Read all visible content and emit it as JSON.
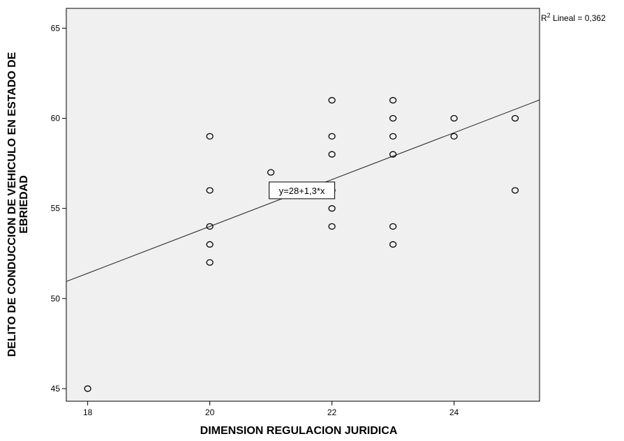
{
  "chart_data": {
    "type": "scatter",
    "title": "",
    "xlabel": "DIMENSION REGULACION JURIDICA",
    "ylabel_line1": "DELITO DE CONDUCCION DE VEHICULO EN ESTADO DE",
    "ylabel_line2": "EBRIEDAD",
    "xlim": [
      17.65,
      25.4
    ],
    "ylim": [
      44.3,
      66.1
    ],
    "x_ticks": [
      18,
      20,
      22,
      24
    ],
    "x_tick_labels": [
      "18",
      "20",
      "22",
      "24"
    ],
    "y_ticks": [
      45,
      50,
      55,
      60,
      65
    ],
    "y_tick_labels": [
      "45",
      "50",
      "55",
      "60",
      "65"
    ],
    "grid": false,
    "plot_background": "#f0f0f0",
    "marker_color": "#000000",
    "points": [
      {
        "x": 18,
        "y": 45
      },
      {
        "x": 20,
        "y": 59
      },
      {
        "x": 20,
        "y": 56
      },
      {
        "x": 20,
        "y": 54
      },
      {
        "x": 20,
        "y": 53
      },
      {
        "x": 20,
        "y": 52
      },
      {
        "x": 21,
        "y": 57
      },
      {
        "x": 22,
        "y": 61
      },
      {
        "x": 22,
        "y": 59
      },
      {
        "x": 22,
        "y": 58
      },
      {
        "x": 22,
        "y": 56
      },
      {
        "x": 22,
        "y": 55
      },
      {
        "x": 22,
        "y": 54
      },
      {
        "x": 23,
        "y": 61
      },
      {
        "x": 23,
        "y": 60
      },
      {
        "x": 23,
        "y": 59
      },
      {
        "x": 23,
        "y": 58
      },
      {
        "x": 23,
        "y": 54
      },
      {
        "x": 23,
        "y": 53
      },
      {
        "x": 24,
        "y": 60
      },
      {
        "x": 24,
        "y": 59
      },
      {
        "x": 25,
        "y": 60
      },
      {
        "x": 25,
        "y": 56
      }
    ],
    "fit_line": {
      "intercept": 28,
      "slope": 1.3
    },
    "fit_equation_label": "y=28+1,3*x",
    "r2_prefix": "R",
    "r2_sup": "2",
    "r2_label": " Lineal = 0,362"
  }
}
